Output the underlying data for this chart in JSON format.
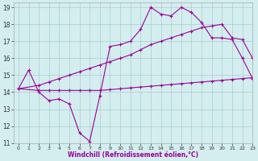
{
  "xlabel": "Windchill (Refroidissement éolien,°C)",
  "ylabel": "",
  "bg_color": "#d4eef0",
  "line_color": "#990099",
  "grid_color": "#aacccc",
  "xlim": [
    -0.5,
    23
  ],
  "ylim": [
    11,
    19.3
  ],
  "xticks": [
    0,
    1,
    2,
    3,
    4,
    5,
    6,
    7,
    8,
    9,
    10,
    11,
    12,
    13,
    14,
    15,
    16,
    17,
    18,
    19,
    20,
    21,
    22,
    23
  ],
  "yticks": [
    11,
    12,
    13,
    14,
    15,
    16,
    17,
    18,
    19
  ],
  "line1_x": [
    0,
    1,
    2,
    3,
    4,
    5,
    6,
    7,
    8,
    9,
    10,
    11,
    12,
    13,
    14,
    15,
    16,
    17,
    18,
    19,
    20,
    21,
    22,
    23
  ],
  "line1_y": [
    14.2,
    15.3,
    14.0,
    13.5,
    13.6,
    13.3,
    11.6,
    11.1,
    13.8,
    16.7,
    16.8,
    17.0,
    17.7,
    19.0,
    18.6,
    18.5,
    19.0,
    18.7,
    18.1,
    17.2,
    17.2,
    17.1,
    16.0,
    14.8
  ],
  "line2_x": [
    0,
    2,
    3,
    4,
    5,
    6,
    7,
    8,
    9,
    10,
    11,
    12,
    13,
    14,
    15,
    16,
    17,
    18,
    19,
    20,
    21,
    22,
    23
  ],
  "line2_y": [
    14.2,
    14.4,
    14.6,
    14.8,
    15.0,
    15.2,
    15.4,
    15.6,
    15.8,
    16.0,
    16.2,
    16.5,
    16.8,
    17.0,
    17.2,
    17.4,
    17.6,
    17.8,
    17.9,
    18.0,
    17.2,
    17.1,
    16.0
  ],
  "line3_x": [
    0,
    2,
    3,
    4,
    5,
    6,
    7,
    8,
    9,
    10,
    11,
    12,
    13,
    14,
    15,
    16,
    17,
    18,
    19,
    20,
    21,
    22,
    23
  ],
  "line3_y": [
    14.2,
    14.1,
    14.1,
    14.1,
    14.1,
    14.1,
    14.1,
    14.1,
    14.15,
    14.2,
    14.25,
    14.3,
    14.35,
    14.4,
    14.45,
    14.5,
    14.55,
    14.6,
    14.65,
    14.7,
    14.75,
    14.8,
    14.85
  ]
}
